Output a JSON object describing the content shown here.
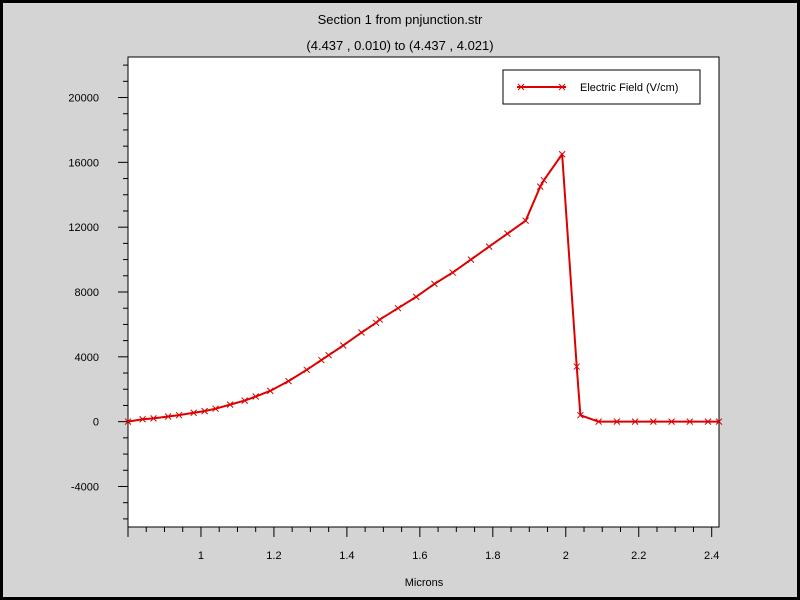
{
  "chart_data": {
    "type": "line",
    "title": "Section 1 from pnjunction.str",
    "subtitle": "(4.437 , 0.010) to (4.437 , 4.021)",
    "xlabel": "Microns",
    "ylabel": "",
    "xlim": [
      0.8,
      2.42
    ],
    "ylim": [
      -6500,
      22500
    ],
    "x_ticks": [
      1,
      1.2,
      1.4,
      1.6,
      1.8,
      2,
      2.2,
      2.4
    ],
    "x_tick_labels": [
      "1",
      "1.2",
      "1.4",
      "1.6",
      "1.8",
      "2",
      "2.2",
      "2.4"
    ],
    "y_ticks": [
      -4000,
      0,
      4000,
      8000,
      12000,
      16000,
      20000
    ],
    "y_tick_labels": [
      "-4000",
      "0",
      "4000",
      "8000",
      "12000",
      "16000",
      "20000"
    ],
    "legend_position": "top-right",
    "grid": false,
    "colors": {
      "series": "#dd0000",
      "background": "#ffffff",
      "panel": "#d4d4d4"
    },
    "series": [
      {
        "name": "Electric Field (V/cm)",
        "marker": "x",
        "x": [
          0.8,
          0.84,
          0.87,
          0.91,
          0.94,
          0.98,
          1.01,
          1.04,
          1.08,
          1.12,
          1.15,
          1.19,
          1.24,
          1.29,
          1.33,
          1.35,
          1.39,
          1.44,
          1.48,
          1.49,
          1.54,
          1.59,
          1.64,
          1.69,
          1.74,
          1.79,
          1.84,
          1.89,
          1.93,
          1.94,
          1.99,
          2.03,
          2.04,
          2.09,
          2.14,
          2.19,
          2.24,
          2.29,
          2.34,
          2.39,
          2.42
        ],
        "y": [
          0,
          150,
          200,
          320,
          400,
          550,
          650,
          800,
          1050,
          1300,
          1550,
          1900,
          2500,
          3200,
          3800,
          4100,
          4700,
          5500,
          6100,
          6300,
          7000,
          7700,
          8500,
          9200,
          10000,
          10800,
          11600,
          12400,
          14500,
          14900,
          16500,
          3400,
          400,
          0,
          0,
          0,
          0,
          0,
          0,
          0,
          0
        ]
      }
    ]
  }
}
